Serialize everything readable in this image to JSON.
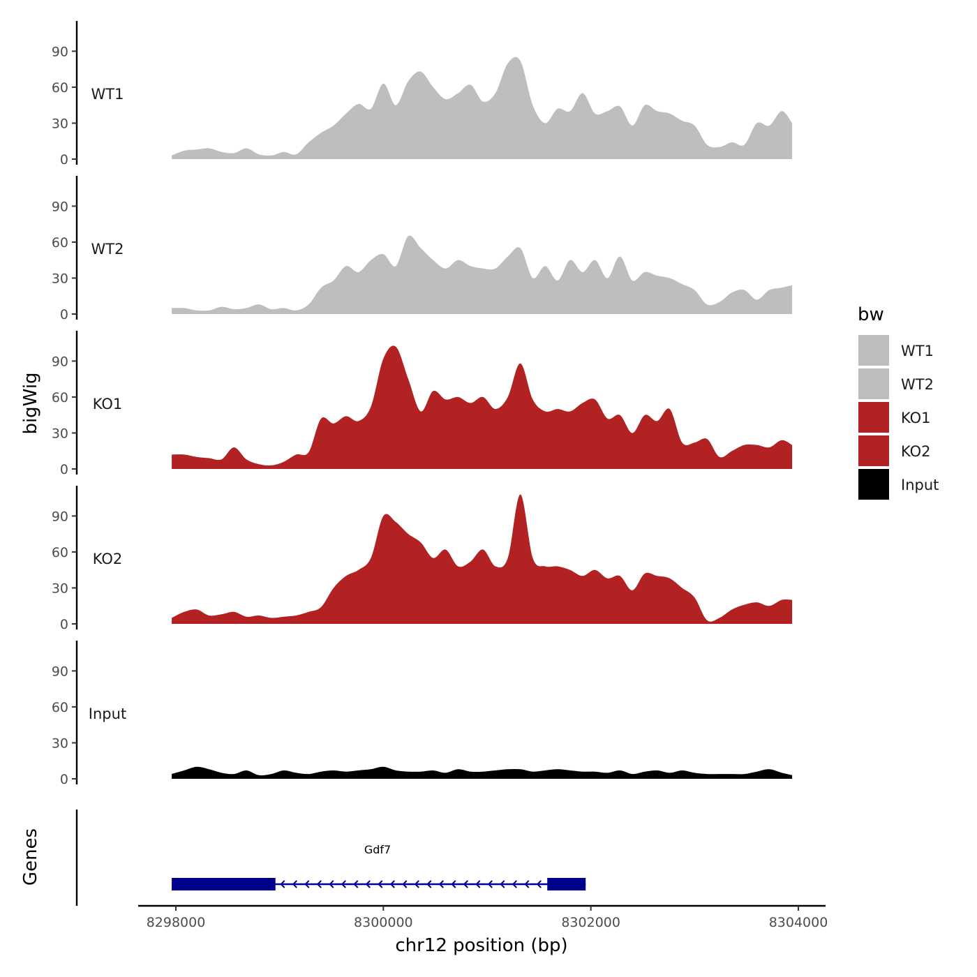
{
  "chart_data": {
    "type": "area",
    "ylabel": "bigWig",
    "xlabel": "chr12 position (bp)",
    "xlim": [
      8297850,
      8304250
    ],
    "ylim": [
      0,
      115
    ],
    "yticks": [
      0,
      30,
      60,
      90
    ],
    "xticks": [
      8298000,
      8300000,
      8302000,
      8304000
    ],
    "xtick_labels": [
      "8298000",
      "8300000",
      "8302000",
      "8304000"
    ],
    "x": [
      8297960,
      8298080,
      8298200,
      8298320,
      8298440,
      8298560,
      8298680,
      8298800,
      8298920,
      8299040,
      8299160,
      8299280,
      8299400,
      8299520,
      8299640,
      8299760,
      8299880,
      8300000,
      8300120,
      8300240,
      8300360,
      8300480,
      8300600,
      8300720,
      8300840,
      8300960,
      8301080,
      8301200,
      8301320,
      8301440,
      8301560,
      8301680,
      8301800,
      8301920,
      8302040,
      8302160,
      8302280,
      8302400,
      8302520,
      8302640,
      8302760,
      8302880,
      8303000,
      8303120,
      8303240,
      8303360,
      8303480,
      8303600,
      8303720,
      8303840,
      8303940
    ],
    "series": [
      {
        "name": "WT1",
        "color": "#bebebe",
        "values": [
          3,
          7,
          8,
          9,
          6,
          5,
          9,
          4,
          3,
          6,
          4,
          14,
          22,
          28,
          38,
          46,
          42,
          63,
          45,
          65,
          73,
          60,
          50,
          55,
          62,
          48,
          55,
          80,
          82,
          45,
          30,
          42,
          40,
          55,
          38,
          40,
          44,
          28,
          45,
          40,
          38,
          32,
          28,
          12,
          10,
          14,
          12,
          30,
          28,
          40,
          30
        ]
      },
      {
        "name": "WT2",
        "color": "#bebebe",
        "values": [
          5,
          5,
          3,
          3,
          6,
          4,
          5,
          8,
          4,
          5,
          3,
          8,
          22,
          28,
          40,
          35,
          45,
          50,
          40,
          65,
          55,
          45,
          38,
          45,
          40,
          38,
          38,
          48,
          55,
          30,
          40,
          28,
          45,
          35,
          45,
          30,
          48,
          28,
          35,
          32,
          30,
          25,
          20,
          8,
          10,
          18,
          20,
          12,
          20,
          22,
          24
        ]
      },
      {
        "name": "KO1",
        "color": "#b22222",
        "values": [
          12,
          12,
          10,
          9,
          8,
          18,
          8,
          4,
          3,
          6,
          12,
          14,
          42,
          38,
          44,
          40,
          52,
          92,
          102,
          75,
          48,
          65,
          58,
          60,
          55,
          60,
          50,
          60,
          88,
          58,
          48,
          50,
          48,
          55,
          58,
          42,
          45,
          30,
          45,
          40,
          50,
          22,
          22,
          25,
          10,
          15,
          20,
          20,
          18,
          24,
          20
        ]
      },
      {
        "name": "KO2",
        "color": "#b22222",
        "values": [
          5,
          10,
          12,
          7,
          8,
          10,
          6,
          7,
          5,
          6,
          7,
          10,
          14,
          30,
          40,
          45,
          55,
          90,
          85,
          75,
          68,
          55,
          62,
          48,
          52,
          62,
          48,
          55,
          108,
          55,
          48,
          48,
          45,
          40,
          45,
          38,
          40,
          28,
          42,
          40,
          38,
          30,
          22,
          3,
          5,
          12,
          16,
          18,
          15,
          20,
          20
        ]
      },
      {
        "name": "Input",
        "color": "#000000",
        "values": [
          4,
          7,
          10,
          8,
          5,
          4,
          7,
          3,
          4,
          7,
          5,
          4,
          6,
          7,
          6,
          7,
          8,
          10,
          7,
          6,
          6,
          7,
          5,
          8,
          6,
          6,
          7,
          8,
          8,
          6,
          7,
          8,
          7,
          6,
          6,
          5,
          7,
          4,
          6,
          7,
          5,
          7,
          5,
          4,
          4,
          4,
          4,
          6,
          8,
          5,
          3
        ]
      }
    ],
    "gene": {
      "name": "Gdf7",
      "strand": "-",
      "start": 8297960,
      "end": 8301950,
      "exons": [
        [
          8297960,
          8298960
        ],
        [
          8301580,
          8301950
        ]
      ],
      "color": "#00008b"
    },
    "track_labels": [
      "WT1",
      "WT2",
      "KO1",
      "KO2",
      "Input"
    ],
    "gene_track_label": "Genes",
    "legend": {
      "title": "bw",
      "entries": [
        {
          "label": "WT1",
          "color": "#bebebe"
        },
        {
          "label": "WT2",
          "color": "#bebebe"
        },
        {
          "label": "KO1",
          "color": "#b22222"
        },
        {
          "label": "KO2",
          "color": "#b22222"
        },
        {
          "label": "Input",
          "color": "#000000"
        }
      ],
      "position": "right"
    }
  }
}
